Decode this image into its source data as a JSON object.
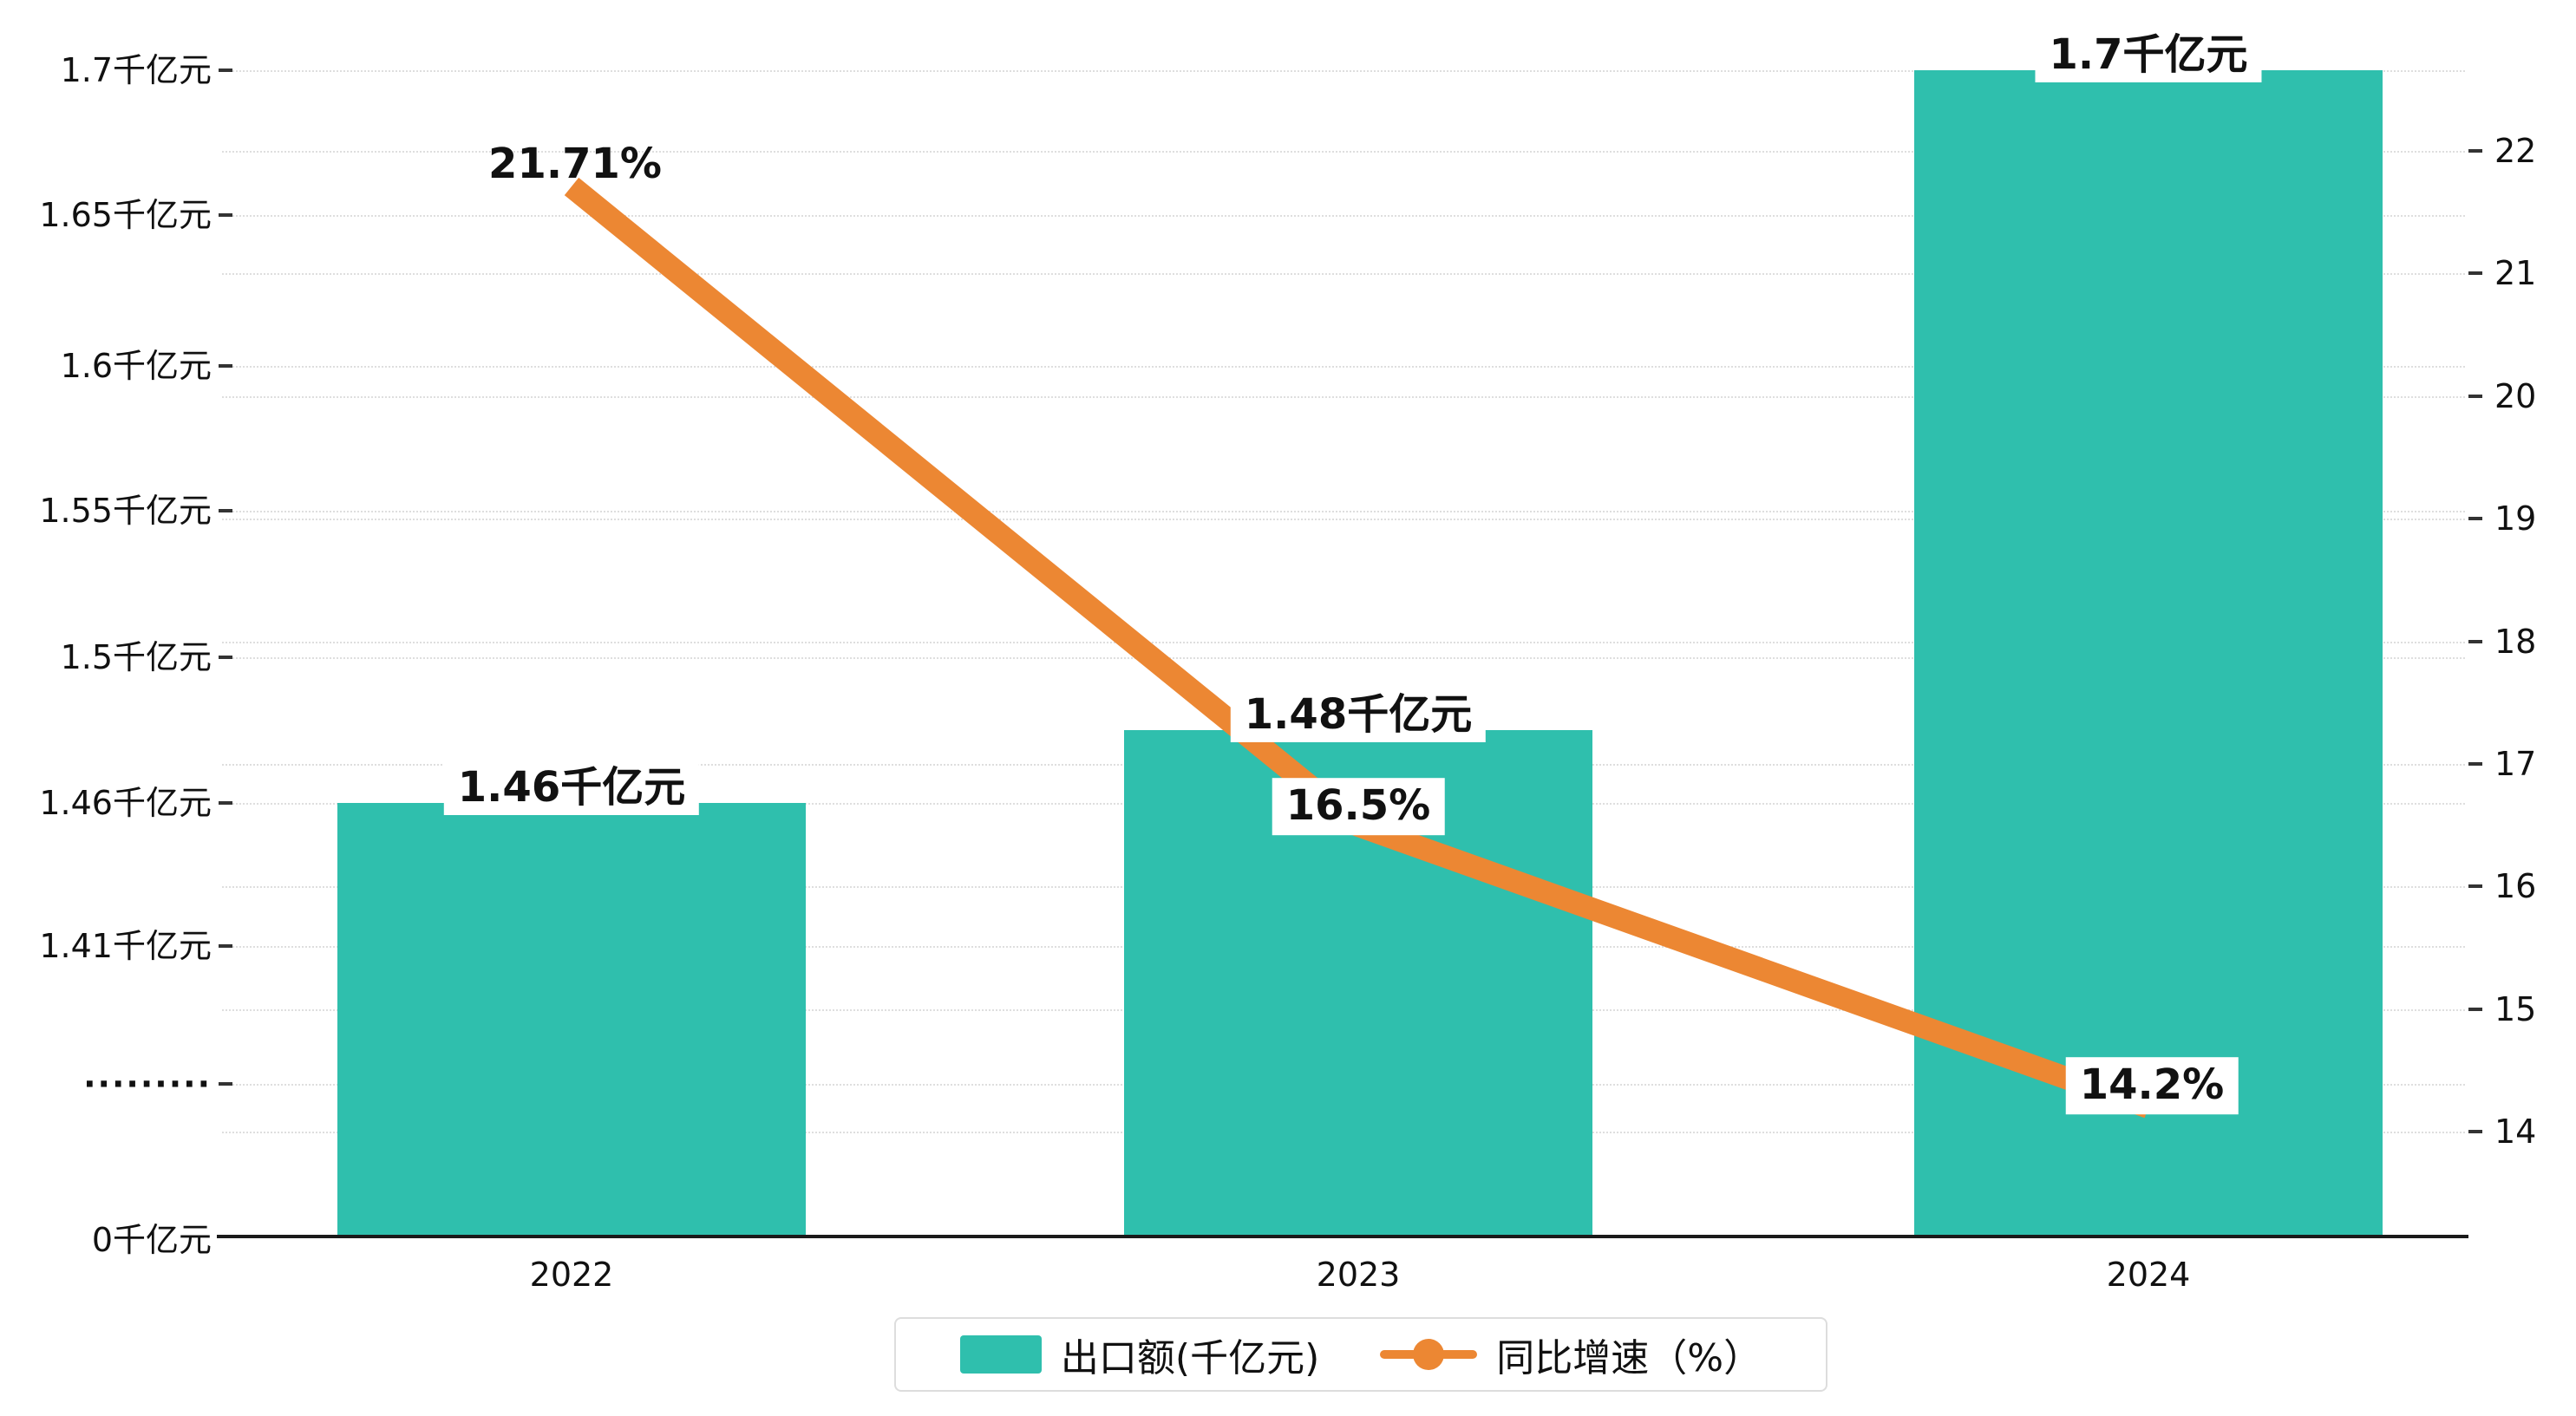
{
  "chart_data": {
    "type": "bar",
    "categories": [
      "2022",
      "2023",
      "2024"
    ],
    "series": [
      {
        "name": "出口额(千亿元)",
        "kind": "bar",
        "values": [
          1.46,
          1.48,
          1.7
        ],
        "labels": [
          "1.46千亿元",
          "1.48千亿元",
          "1.7千亿元"
        ],
        "color": "#2FBFAD",
        "axis": "left"
      },
      {
        "name": "同比增速（%）",
        "kind": "line",
        "values": [
          21.71,
          16.5,
          14.2
        ],
        "labels": [
          "21.71%",
          "16.5%",
          "14.2%"
        ],
        "color": "#EC8733",
        "axis": "right"
      }
    ],
    "left_axis": {
      "tick_labels": [
        "1.7千亿元",
        "1.65千亿元",
        "1.6千亿元",
        "1.55千亿元",
        "1.5千亿元",
        "1.46千亿元",
        "1.41千亿元",
        "·········",
        "0千亿元"
      ],
      "axis_break": true
    },
    "right_axis": {
      "tick_labels": [
        "22",
        "21",
        "20",
        "19",
        "18",
        "17",
        "16",
        "15",
        "14"
      ],
      "range": [
        14,
        22.5
      ]
    },
    "grid": true,
    "legend_position": "bottom-center"
  }
}
